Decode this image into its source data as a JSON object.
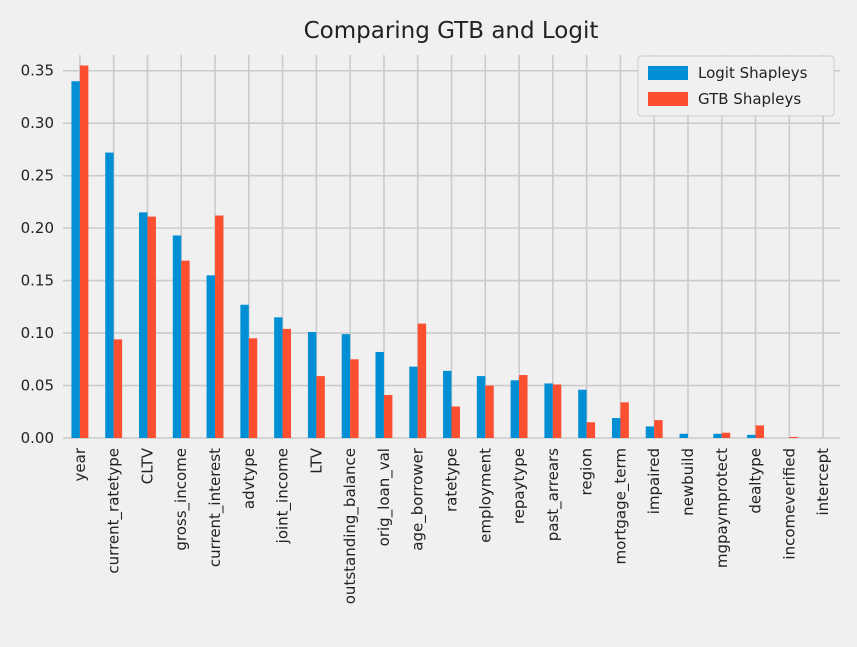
{
  "chart_data": {
    "type": "bar",
    "title": "Comparing GTB and Logit",
    "xlabel": "",
    "ylabel": "",
    "ylim": [
      0,
      0.365
    ],
    "yticks": [
      "0.00",
      "0.05",
      "0.10",
      "0.15",
      "0.20",
      "0.25",
      "0.30",
      "0.35"
    ],
    "grid": true,
    "legend_position": "top-right",
    "categories": [
      "year",
      "current_ratetype",
      "CLTV",
      "gross_income",
      "current_interest",
      "advtype",
      "joint_income",
      "LTV",
      "outstanding_balance",
      "orig_loan_val",
      "age_borrower",
      "ratetype",
      "employment",
      "repaytype",
      "past_arrears",
      "region",
      "mortgage_term",
      "impaired",
      "newbuild",
      "mgpaymprotect",
      "dealtype",
      "incomeverified",
      "intercept"
    ],
    "series": [
      {
        "name": "Logit Shapleys",
        "color": "#008fd5",
        "values": [
          0.34,
          0.272,
          0.215,
          0.193,
          0.155,
          0.127,
          0.115,
          0.101,
          0.099,
          0.082,
          0.068,
          0.064,
          0.059,
          0.055,
          0.052,
          0.046,
          0.019,
          0.011,
          0.004,
          0.004,
          0.003,
          0.0,
          0.0
        ]
      },
      {
        "name": "GTB Shapleys",
        "color": "#fc4f30",
        "values": [
          0.355,
          0.094,
          0.211,
          0.169,
          0.212,
          0.095,
          0.104,
          0.059,
          0.075,
          0.041,
          0.109,
          0.03,
          0.05,
          0.06,
          0.051,
          0.015,
          0.034,
          0.017,
          0.0,
          0.005,
          0.012,
          0.001,
          0.0
        ]
      }
    ]
  }
}
